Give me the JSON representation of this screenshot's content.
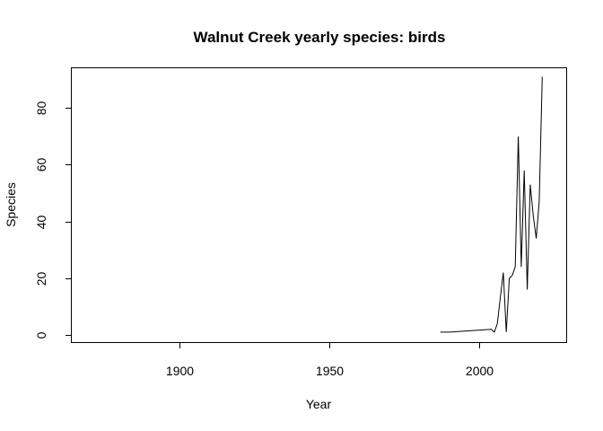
{
  "chart_data": {
    "type": "line",
    "title": "Walnut Creek yearly species: birds",
    "xlabel": "Year",
    "ylabel": "Species",
    "xlim": [
      1864,
      2029
    ],
    "ylim": [
      -2.5,
      94
    ],
    "xticks": [
      1900,
      1950,
      2000
    ],
    "yticks": [
      0,
      20,
      40,
      60,
      80
    ],
    "grid": false,
    "series": [
      {
        "x": [
          1987,
          1990,
          2004,
          2005,
          2006,
          2007,
          2008,
          2009,
          2010,
          2011,
          2012,
          2013,
          2014,
          2015,
          2016,
          2017,
          2018,
          2019,
          2020,
          2021
        ],
        "y": [
          1,
          1,
          2,
          1,
          4,
          13,
          22,
          1,
          20,
          21,
          24,
          70,
          24,
          58,
          16,
          53,
          42,
          34,
          47,
          91
        ]
      }
    ]
  }
}
